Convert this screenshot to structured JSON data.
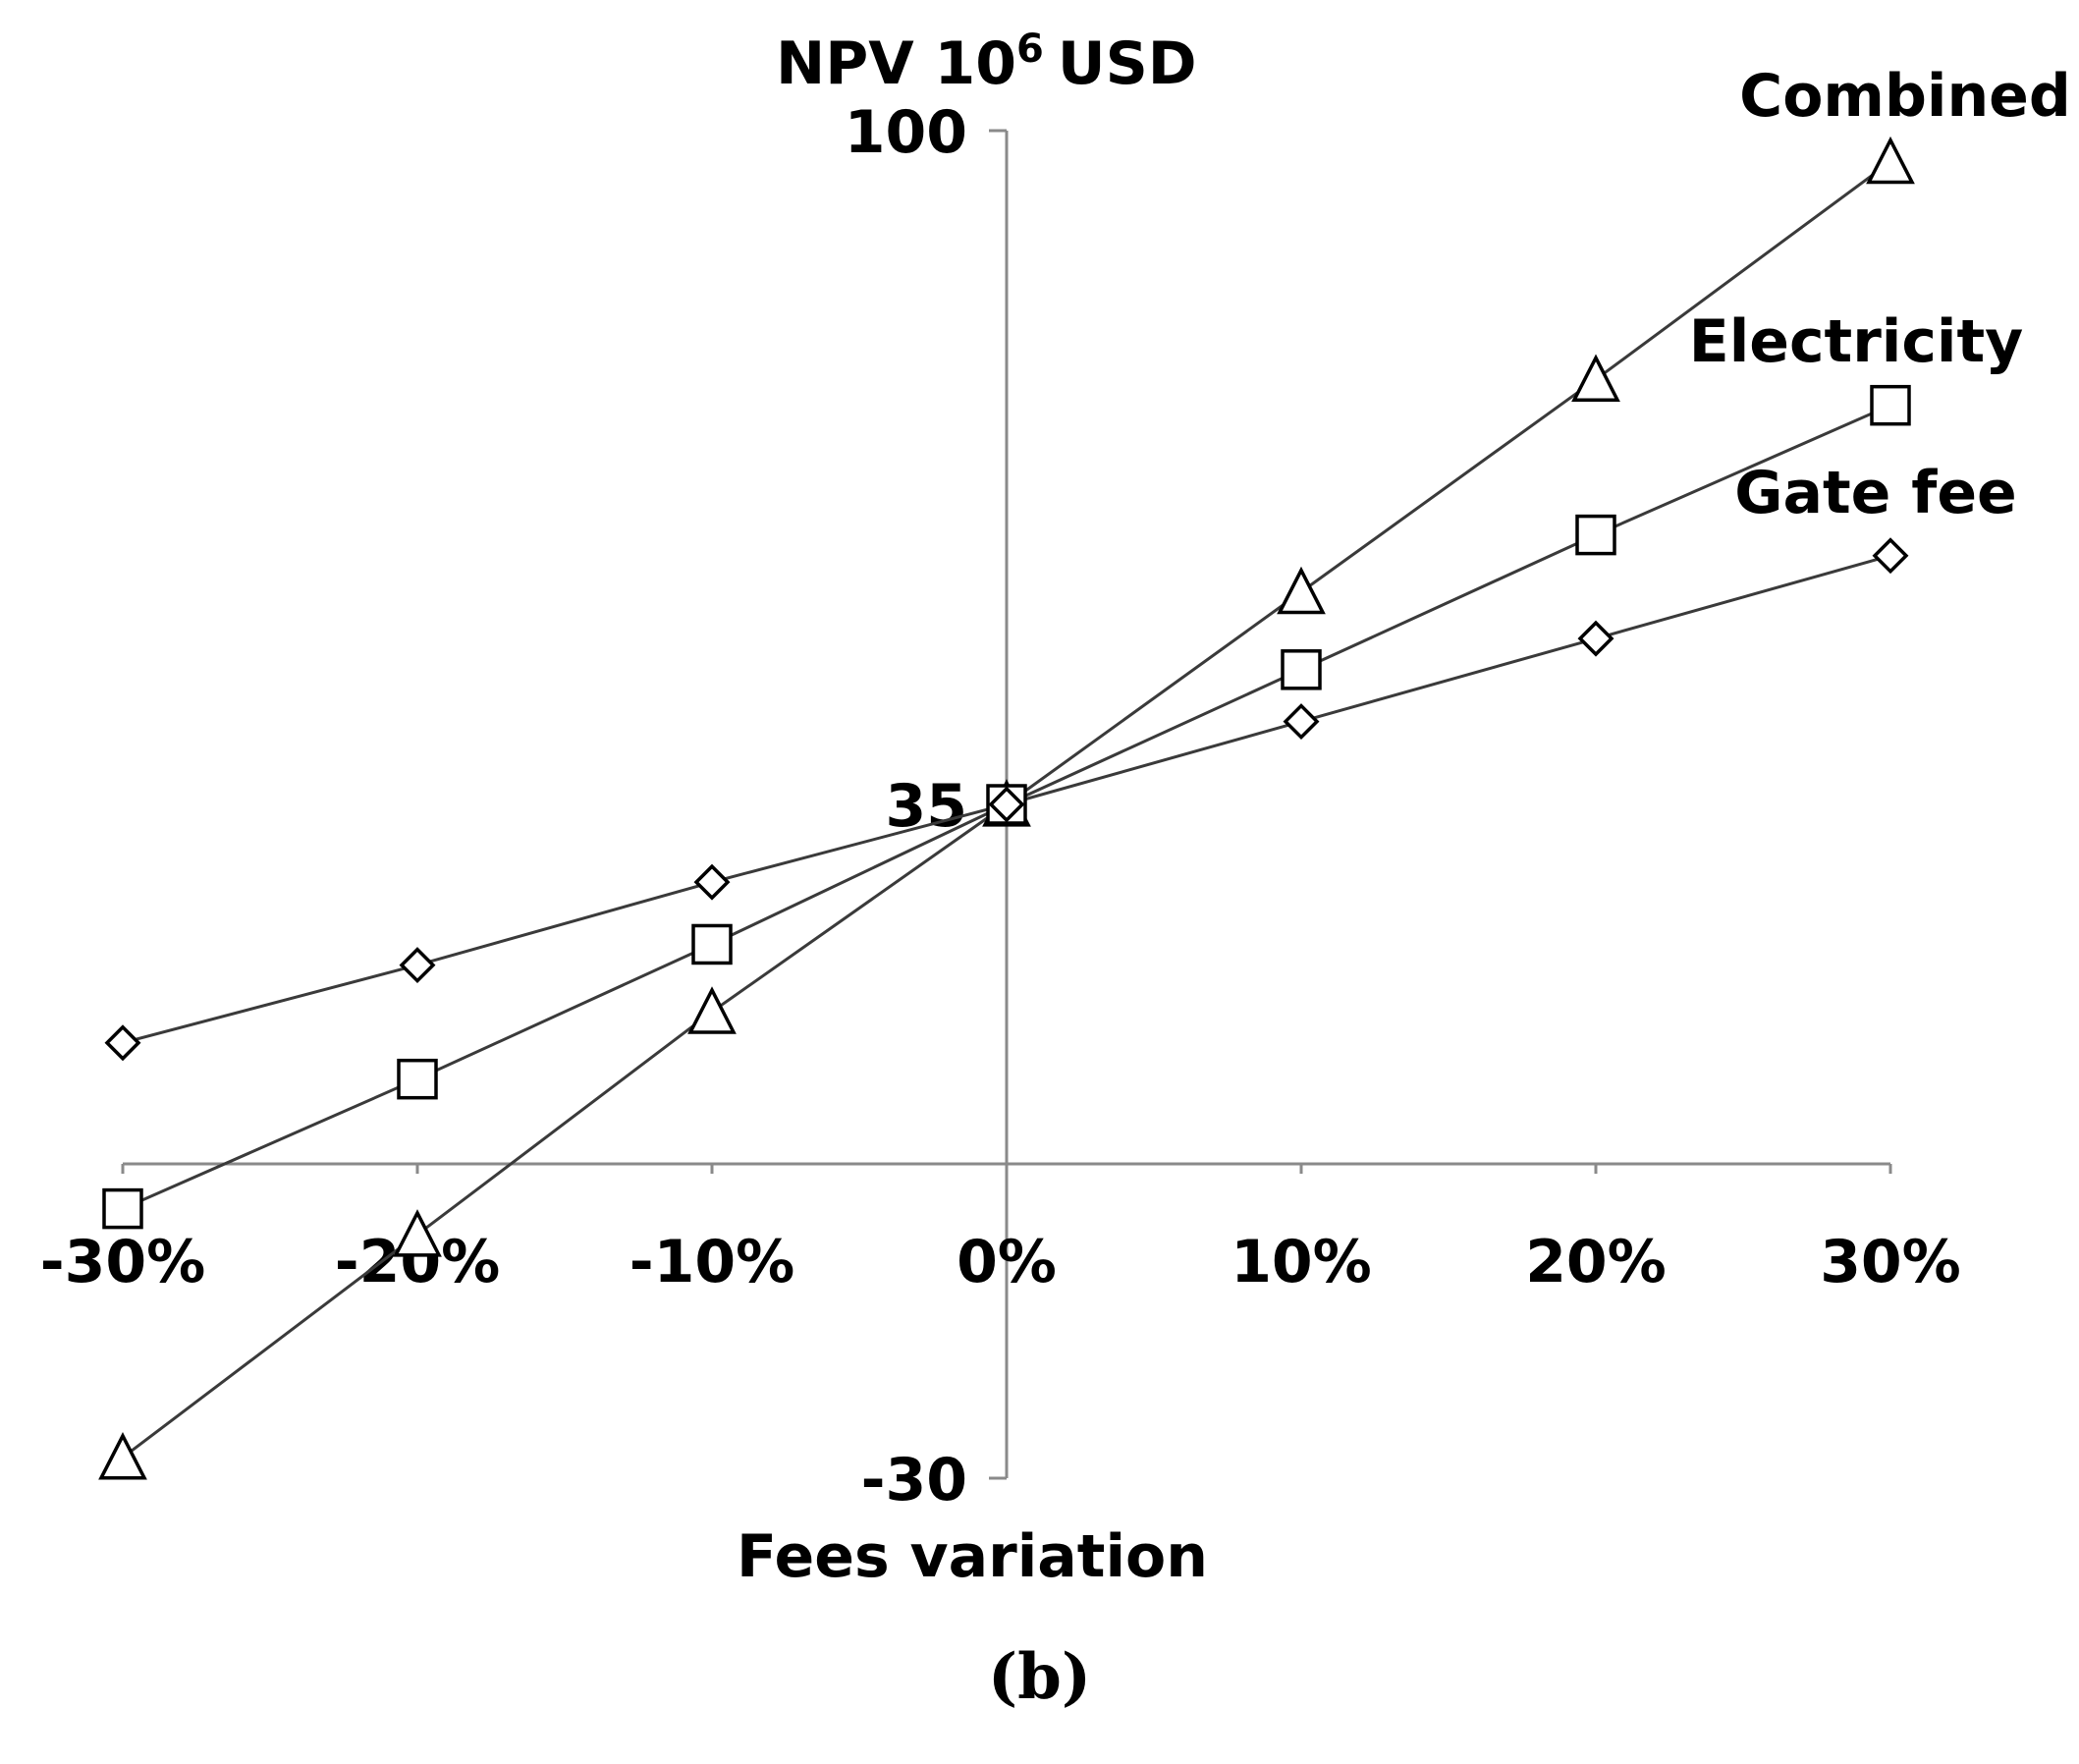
{
  "chart_data": {
    "type": "line",
    "title": "",
    "ylabel": "NPV 10",
    "ylabel_superscript": "6",
    "ylabel_unit": "USD",
    "xlabel": "Fees variation",
    "x": [
      "-30%",
      "-20%",
      "-10%",
      "0%",
      "10%",
      "20%",
      "30%"
    ],
    "x_values": [
      -30,
      -20,
      -10,
      0,
      10,
      20,
      30
    ],
    "ylim": [
      -30,
      100
    ],
    "y_ticks": [
      100,
      35,
      -30
    ],
    "y_tick_labels": [
      "100",
      "35",
      "-30"
    ],
    "series": [
      {
        "name": "Combined",
        "marker": "triangle",
        "values": [
          -28,
          -6.5,
          15,
          35,
          55.5,
          76,
          97
        ]
      },
      {
        "name": "Electricity",
        "marker": "square",
        "values": [
          -4,
          8.5,
          21.5,
          35,
          48,
          61,
          73.5
        ]
      },
      {
        "name": "Gate fee",
        "marker": "diamond",
        "values": [
          12,
          19.5,
          27.5,
          35,
          43,
          51,
          59
        ]
      }
    ],
    "series_labels": [
      "Combined",
      "Electricity",
      "Gate fee"
    ]
  },
  "caption": {
    "open": "(",
    "letter": "b",
    "close": ")"
  }
}
